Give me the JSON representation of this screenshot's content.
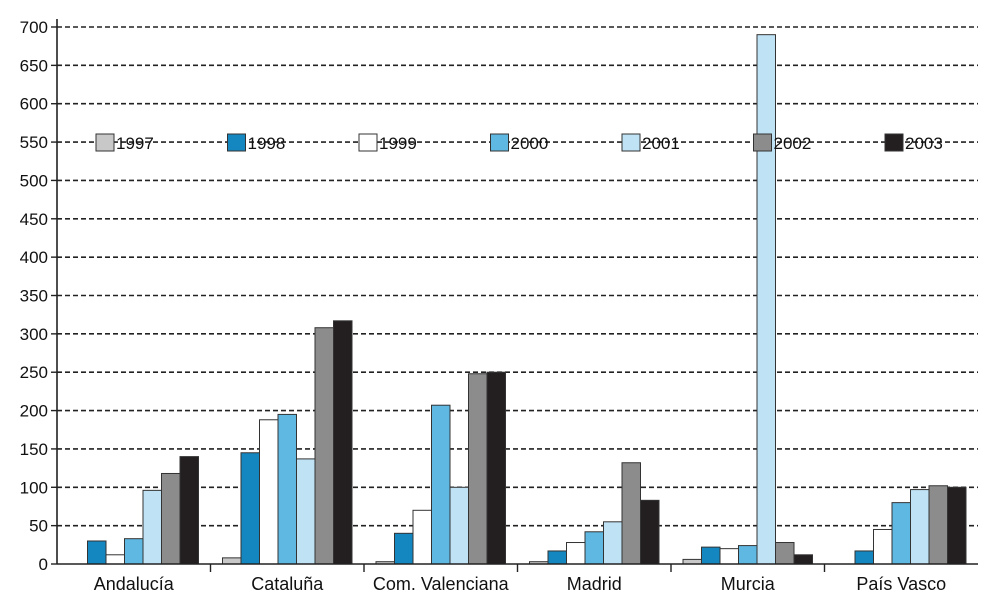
{
  "chart_data": {
    "type": "bar",
    "title": "",
    "xlabel": "",
    "ylabel": "",
    "ylim": [
      0,
      700
    ],
    "yticks": [
      0,
      50,
      100,
      150,
      200,
      250,
      300,
      350,
      400,
      450,
      500,
      550,
      600,
      650,
      700
    ],
    "grid": "dashed horizontal",
    "legend_position": "top",
    "categories": [
      "Andalucía",
      "Cataluña",
      "Com. Valenciana",
      "Madrid",
      "Murcia",
      "País Vasco"
    ],
    "series": [
      {
        "name": "1997",
        "color": "#c8c8c8",
        "values": [
          0,
          8,
          3,
          3,
          6,
          0
        ]
      },
      {
        "name": "1998",
        "color": "#1487c0",
        "values": [
          30,
          145,
          40,
          17,
          22,
          17
        ]
      },
      {
        "name": "1999",
        "color": "#ffffff",
        "values": [
          12,
          188,
          70,
          28,
          20,
          45
        ]
      },
      {
        "name": "2000",
        "color": "#5fb8e2",
        "values": [
          33,
          195,
          207,
          42,
          24,
          80
        ]
      },
      {
        "name": "2001",
        "color": "#bfe3f5",
        "values": [
          96,
          137,
          100,
          55,
          690,
          97
        ]
      },
      {
        "name": "2002",
        "color": "#8c8c8c",
        "values": [
          118,
          308,
          248,
          132,
          28,
          102
        ]
      },
      {
        "name": "2003",
        "color": "#231f20",
        "values": [
          140,
          317,
          250,
          83,
          12,
          100
        ]
      }
    ]
  }
}
